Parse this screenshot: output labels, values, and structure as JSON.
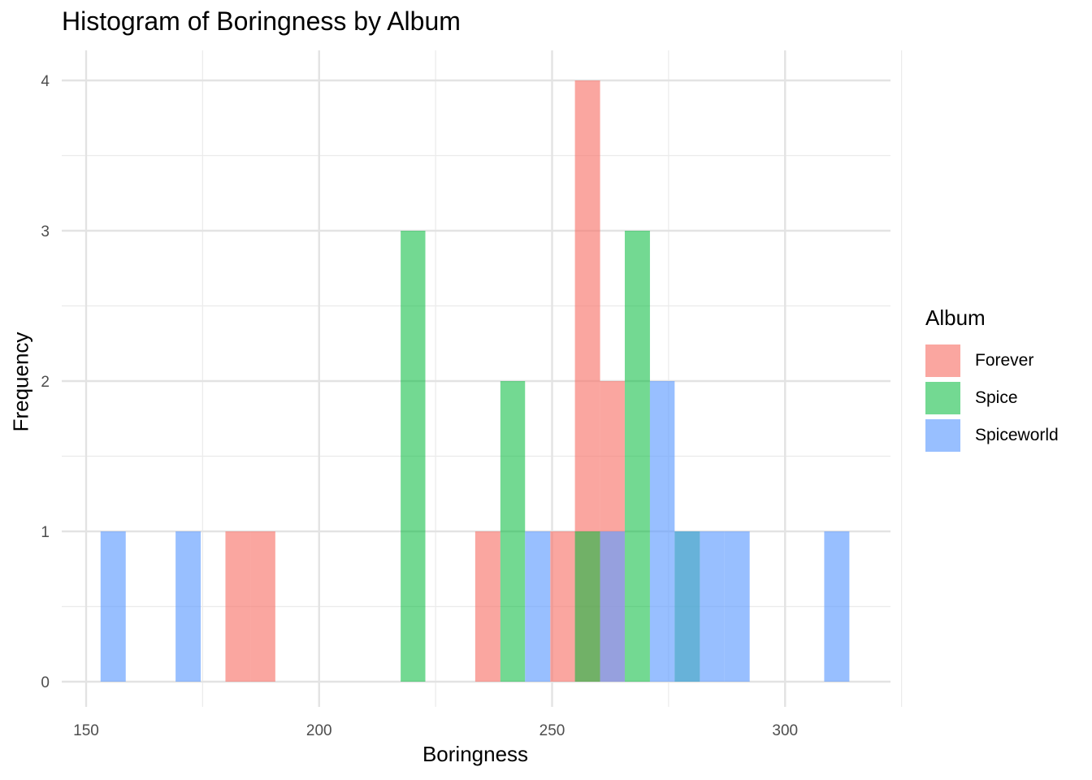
{
  "chart_data": {
    "type": "bar",
    "title": "Histogram of Boringness by Album",
    "xlabel": "Boringness",
    "ylabel": "Frequency",
    "xlim": [
      150,
      320
    ],
    "ylim": [
      0,
      4
    ],
    "x_ticks": [
      150,
      200,
      250,
      300
    ],
    "y_ticks": [
      0,
      1,
      2,
      3,
      4
    ],
    "x_tick_labels": [
      "150",
      "200",
      "250",
      "300"
    ],
    "y_tick_labels": [
      "0",
      "1",
      "2",
      "3",
      "4"
    ],
    "grid": true,
    "legend_title": "Album",
    "legend_position": "right",
    "bin_width": 5.35,
    "series": [
      {
        "name": "Forever",
        "color": "#F8766D",
        "bins": [
          {
            "x_start": 179.9,
            "x_end": 185.3,
            "count": 1
          },
          {
            "x_start": 185.3,
            "x_end": 190.6,
            "count": 1
          },
          {
            "x_start": 233.5,
            "x_end": 238.9,
            "count": 1
          },
          {
            "x_start": 249.6,
            "x_end": 254.9,
            "count": 1
          },
          {
            "x_start": 254.9,
            "x_end": 260.3,
            "count": 4
          },
          {
            "x_start": 260.3,
            "x_end": 265.6,
            "count": 2
          }
        ]
      },
      {
        "name": "Spice",
        "color": "#00BA38",
        "bins": [
          {
            "x_start": 217.5,
            "x_end": 222.8,
            "count": 3
          },
          {
            "x_start": 238.9,
            "x_end": 244.2,
            "count": 2
          },
          {
            "x_start": 254.9,
            "x_end": 260.3,
            "count": 1
          },
          {
            "x_start": 265.6,
            "x_end": 271.0,
            "count": 3
          },
          {
            "x_start": 276.3,
            "x_end": 281.7,
            "count": 1
          }
        ]
      },
      {
        "name": "Spiceworld",
        "color": "#619CFF",
        "bins": [
          {
            "x_start": 153.1,
            "x_end": 158.5,
            "count": 1
          },
          {
            "x_start": 169.2,
            "x_end": 174.6,
            "count": 1
          },
          {
            "x_start": 244.2,
            "x_end": 249.6,
            "count": 1
          },
          {
            "x_start": 260.3,
            "x_end": 265.6,
            "count": 1
          },
          {
            "x_start": 271.0,
            "x_end": 276.3,
            "count": 2
          },
          {
            "x_start": 276.3,
            "x_end": 281.7,
            "count": 1
          },
          {
            "x_start": 281.7,
            "x_end": 287.0,
            "count": 1
          },
          {
            "x_start": 287.0,
            "x_end": 292.4,
            "count": 1
          },
          {
            "x_start": 308.4,
            "x_end": 313.8,
            "count": 1
          }
        ]
      }
    ]
  }
}
